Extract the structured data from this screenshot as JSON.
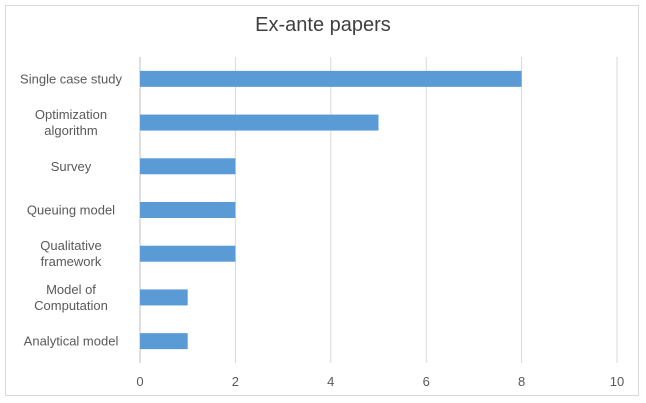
{
  "chart_data": {
    "type": "bar",
    "orientation": "horizontal",
    "title": "Ex-ante papers",
    "categories": [
      [
        "Single case study"
      ],
      [
        "Optimization",
        "algorithm"
      ],
      [
        "Survey"
      ],
      [
        "Queuing model"
      ],
      [
        "Qualitative",
        "framework"
      ],
      [
        "Model of",
        "Computation"
      ],
      [
        "Analytical model"
      ]
    ],
    "values": [
      8,
      5,
      2,
      2,
      2,
      1,
      1
    ],
    "xlim": [
      0,
      10
    ],
    "xticks": [
      0,
      2,
      4,
      6,
      8,
      10
    ],
    "xlabel": "",
    "ylabel": "",
    "grid": "vertical",
    "bar_color": "#5b9bd5"
  }
}
